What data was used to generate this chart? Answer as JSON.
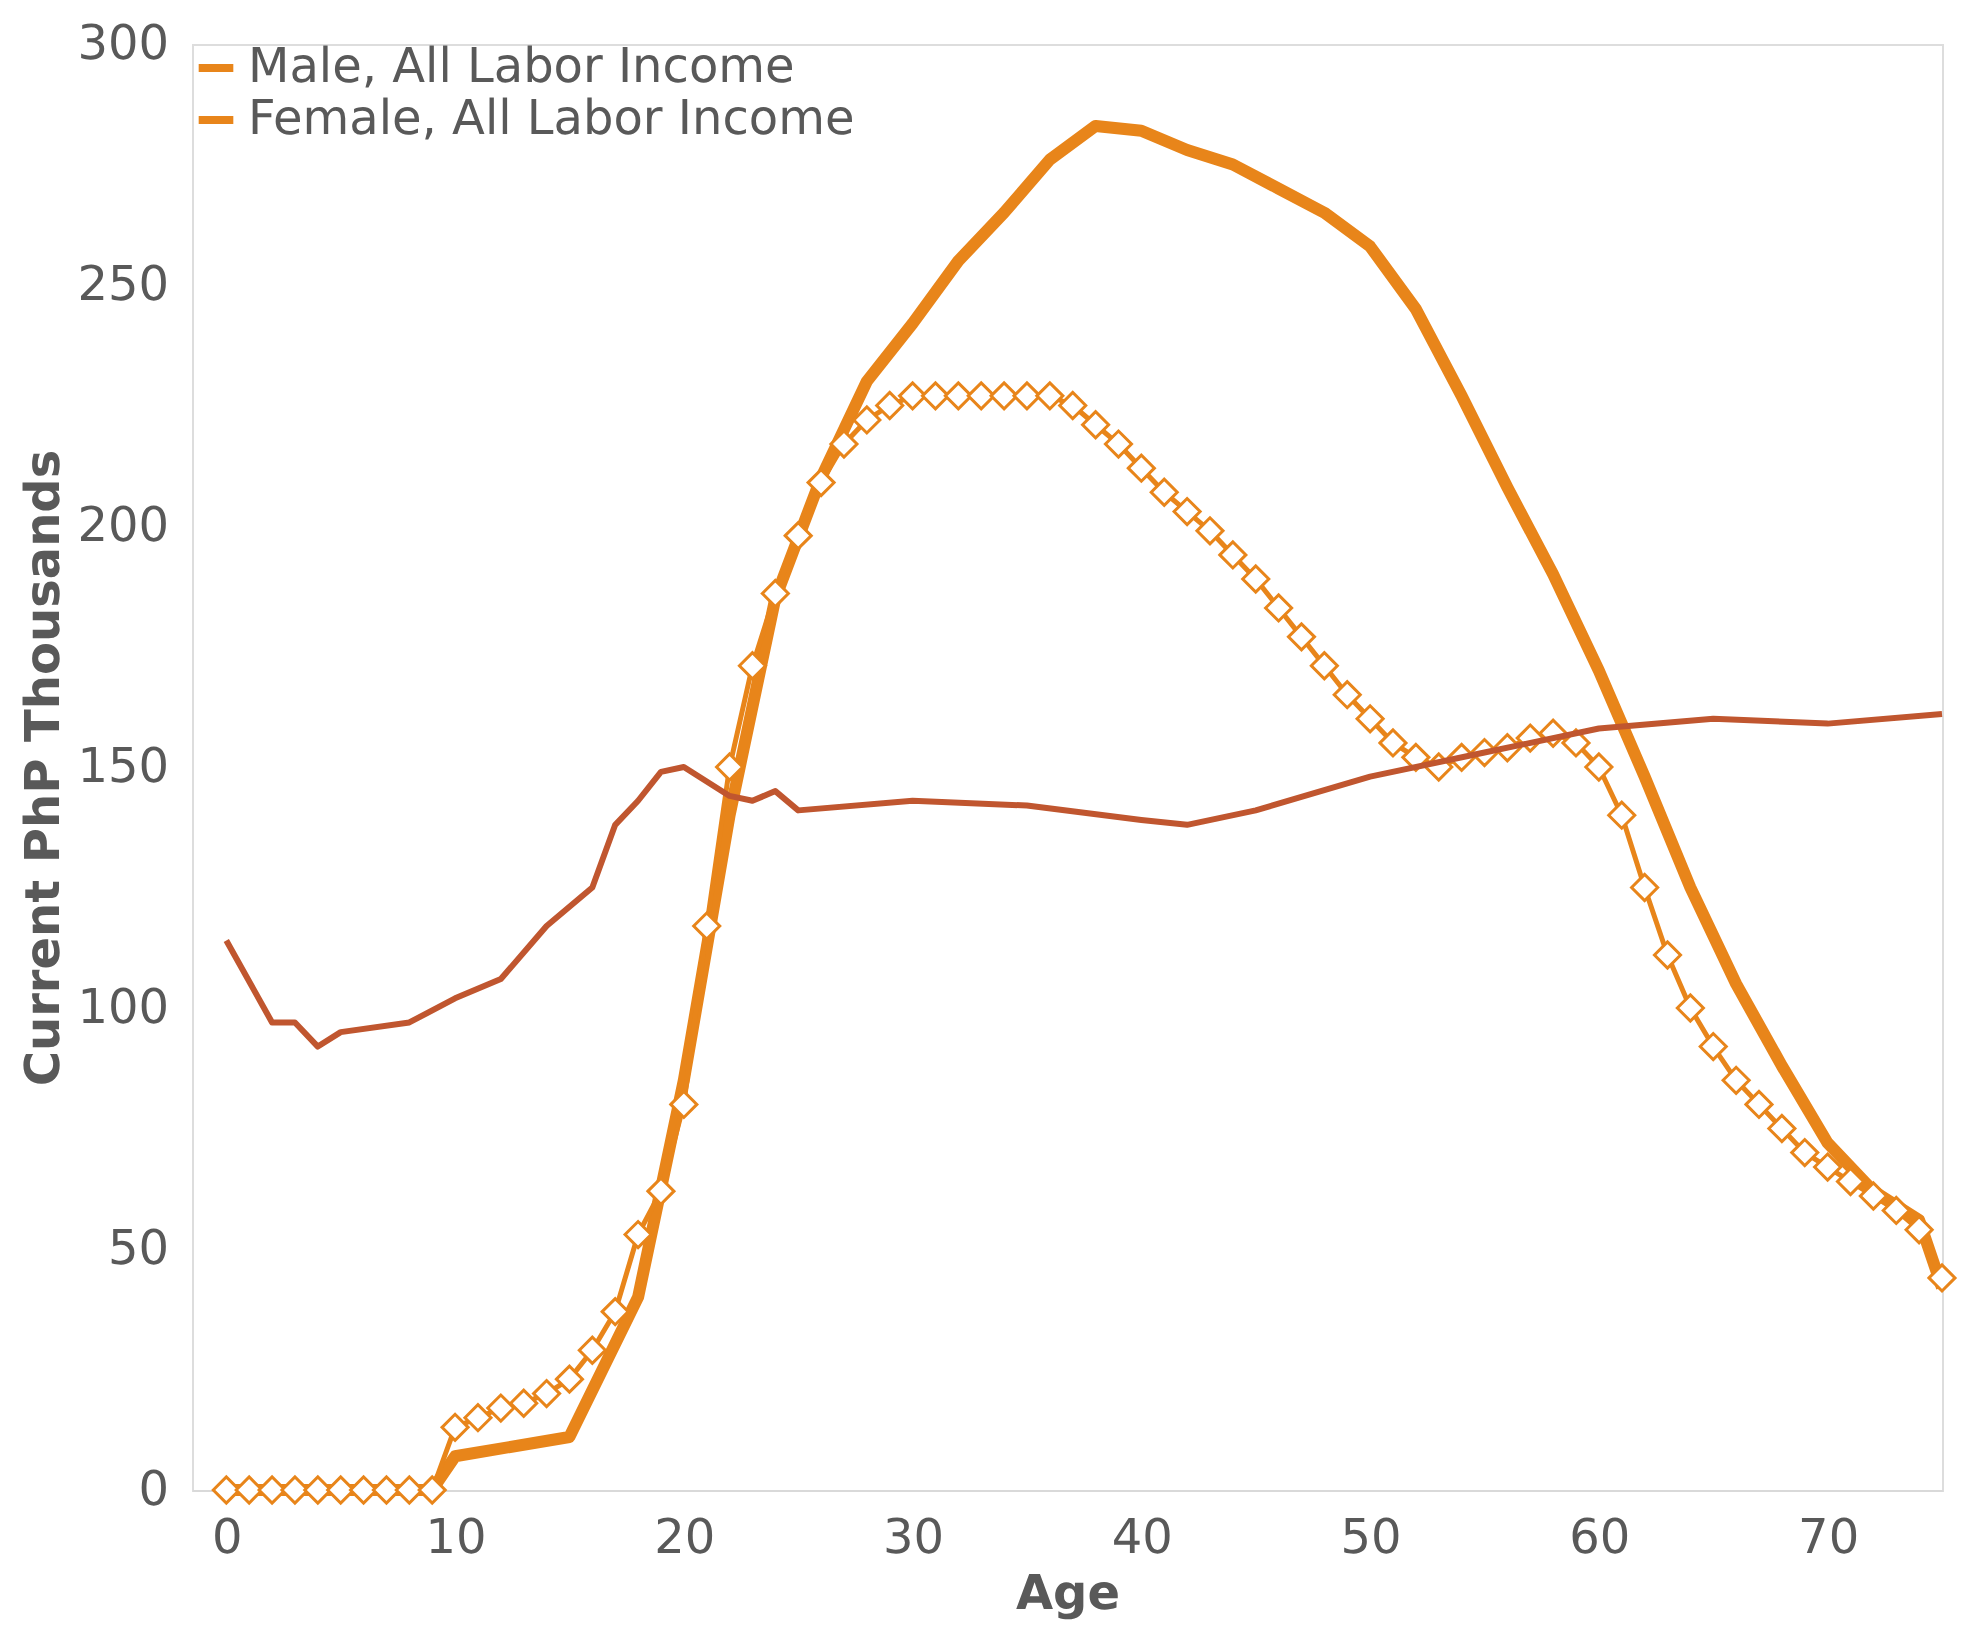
{
  "chart_data": {
    "type": "line",
    "xlabel": "Age",
    "ylabel": "Current PhP Thousands",
    "xlim": [
      -1.5,
      75
    ],
    "xticks": [
      0,
      10,
      20,
      30,
      40,
      50,
      60,
      70
    ],
    "ylim": [
      0,
      300
    ],
    "yticks": [
      0,
      50,
      100,
      150,
      200,
      250,
      300
    ],
    "grid": false,
    "legend": "top left",
    "series": [
      {
        "name": "Male, All Labor Income",
        "color": "#e8851a",
        "marker": "none",
        "x": [
          0,
          9,
          10,
          15,
          18,
          20,
          22,
          24,
          26,
          28,
          30,
          32,
          34,
          36,
          38,
          40,
          42,
          44,
          46,
          48,
          50,
          52,
          54,
          56,
          58,
          60,
          62,
          64,
          66,
          68,
          70,
          72,
          74,
          75
        ],
        "values": [
          0,
          0,
          7,
          11,
          40,
          85,
          140,
          185,
          210,
          230,
          242,
          255,
          265,
          276,
          283,
          282,
          278,
          275,
          270,
          265,
          258,
          245,
          227,
          208,
          190,
          170,
          148,
          125,
          105,
          88,
          72,
          62,
          56,
          42
        ]
      },
      {
        "name": "Female, All Labor Income",
        "color": "#e8851a",
        "marker": "diamond",
        "x": [
          0,
          1,
          2,
          3,
          4,
          5,
          6,
          7,
          8,
          9,
          10,
          11,
          12,
          13,
          14,
          15,
          16,
          17,
          18,
          19,
          20,
          21,
          22,
          23,
          24,
          25,
          26,
          27,
          28,
          29,
          30,
          31,
          32,
          33,
          34,
          35,
          36,
          37,
          38,
          39,
          40,
          41,
          42,
          43,
          44,
          45,
          46,
          47,
          48,
          49,
          50,
          51,
          52,
          53,
          54,
          55,
          56,
          57,
          58,
          59,
          60,
          61,
          62,
          63,
          64,
          65,
          66,
          67,
          68,
          69,
          70,
          71,
          72,
          73,
          74,
          75
        ],
        "values": [
          0,
          0,
          0,
          0,
          0,
          0,
          0,
          0,
          0,
          0,
          13,
          15,
          17,
          18,
          20,
          23,
          29,
          37,
          53,
          62,
          80,
          117,
          150,
          171,
          186,
          198,
          209,
          217,
          222,
          225,
          227,
          227,
          227,
          227,
          227,
          227,
          227,
          225,
          221,
          217,
          212,
          207,
          203,
          199,
          194,
          189,
          183,
          177,
          171,
          165,
          160,
          155,
          152,
          150,
          152,
          153,
          154,
          156,
          157,
          155,
          150,
          140,
          125,
          111,
          100,
          92,
          85,
          80,
          75,
          70,
          67,
          64,
          61,
          58,
          54,
          44
        ]
      },
      {
        "color": "#c0562f",
        "marker": "none",
        "x": [
          0,
          2,
          3,
          4,
          5,
          8,
          10,
          12,
          14,
          16,
          17,
          18,
          19,
          20,
          22,
          23,
          24,
          25,
          30,
          35,
          40,
          42,
          45,
          50,
          55,
          60,
          65,
          70,
          75
        ],
        "values": [
          114,
          97,
          97,
          92,
          95,
          97,
          102,
          106,
          117,
          125,
          138,
          143,
          149,
          150,
          144,
          143,
          145,
          141,
          143,
          142,
          139,
          138,
          141,
          148,
          153,
          158,
          160,
          159,
          161
        ]
      }
    ]
  }
}
